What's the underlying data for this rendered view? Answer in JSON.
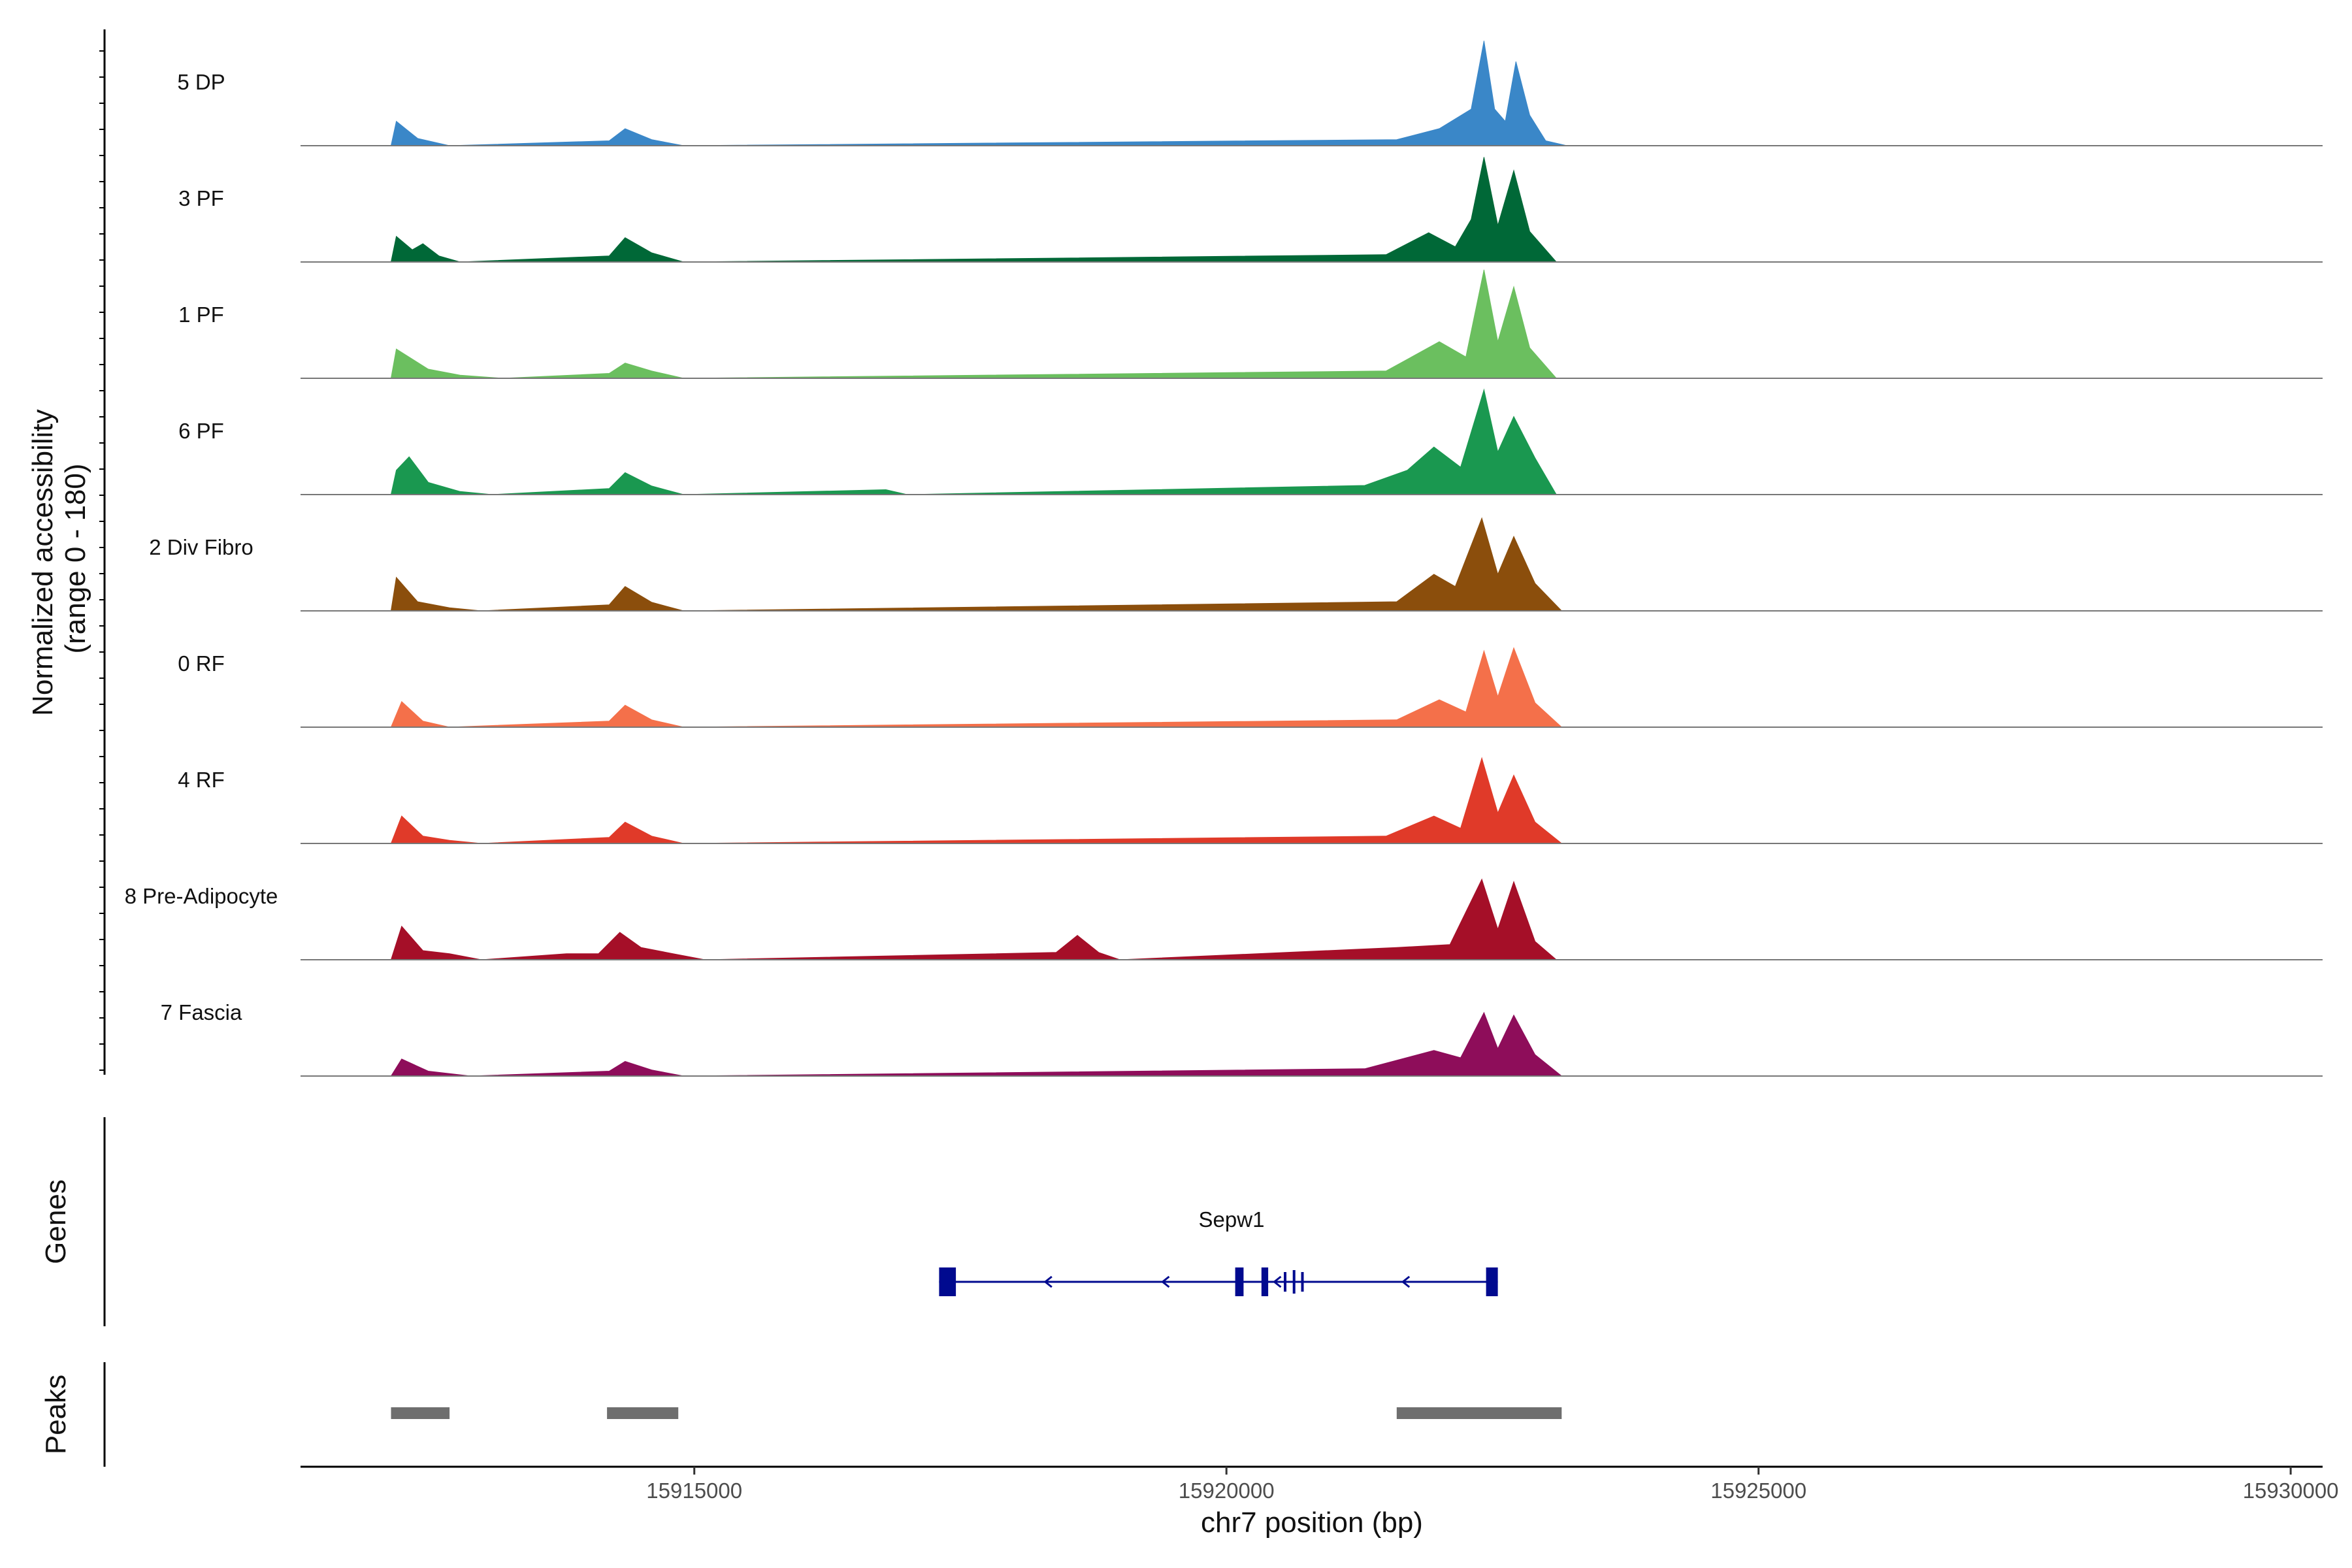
{
  "chart_data": {
    "type": "area",
    "title": "",
    "ylabel": "Normalized accessibility\n(range 0 - 180)",
    "xlabel": "chr7 position (bp)",
    "ylim": [
      0,
      180
    ],
    "xlim": [
      15911300,
      15930300
    ],
    "xticks": [
      15915000,
      15920000,
      15925000,
      15930000
    ],
    "xtick_labels": [
      "15915000",
      "15920000",
      "15925000",
      "15930000"
    ],
    "series": [
      {
        "name": "5 DP",
        "color": "#3A87C8",
        "values": [
          [
            15912150,
            0
          ],
          [
            15912200,
            40
          ],
          [
            15912400,
            12
          ],
          [
            15912700,
            0
          ],
          [
            15914200,
            8
          ],
          [
            15914350,
            28
          ],
          [
            15914600,
            10
          ],
          [
            15914900,
            0
          ],
          [
            15921600,
            10
          ],
          [
            15922000,
            28
          ],
          [
            15922300,
            60
          ],
          [
            15922420,
            172
          ],
          [
            15922520,
            60
          ],
          [
            15922620,
            40
          ],
          [
            15922720,
            138
          ],
          [
            15922850,
            50
          ],
          [
            15923000,
            8
          ],
          [
            15923200,
            0
          ]
        ]
      },
      {
        "name": "3 PF",
        "color": "#006837",
        "values": [
          [
            15912150,
            0
          ],
          [
            15912200,
            42
          ],
          [
            15912350,
            20
          ],
          [
            15912450,
            30
          ],
          [
            15912600,
            10
          ],
          [
            15912800,
            0
          ],
          [
            15914200,
            10
          ],
          [
            15914350,
            40
          ],
          [
            15914600,
            15
          ],
          [
            15914900,
            0
          ],
          [
            15921500,
            12
          ],
          [
            15921900,
            48
          ],
          [
            15922150,
            25
          ],
          [
            15922300,
            70
          ],
          [
            15922420,
            172
          ],
          [
            15922550,
            60
          ],
          [
            15922700,
            150
          ],
          [
            15922850,
            50
          ],
          [
            15923100,
            0
          ]
        ]
      },
      {
        "name": "1 PF",
        "color": "#6BBF5F",
        "values": [
          [
            15912150,
            0
          ],
          [
            15912200,
            48
          ],
          [
            15912500,
            15
          ],
          [
            15912800,
            5
          ],
          [
            15913200,
            0
          ],
          [
            15914200,
            8
          ],
          [
            15914350,
            25
          ],
          [
            15914600,
            12
          ],
          [
            15914900,
            0
          ],
          [
            15921500,
            12
          ],
          [
            15922000,
            60
          ],
          [
            15922250,
            35
          ],
          [
            15922420,
            178
          ],
          [
            15922550,
            60
          ],
          [
            15922700,
            150
          ],
          [
            15922850,
            50
          ],
          [
            15923100,
            0
          ]
        ]
      },
      {
        "name": "6 PF",
        "color": "#1A9850",
        "values": [
          [
            15912150,
            0
          ],
          [
            15912200,
            40
          ],
          [
            15912320,
            62
          ],
          [
            15912500,
            20
          ],
          [
            15912800,
            5
          ],
          [
            15913100,
            0
          ],
          [
            15914200,
            10
          ],
          [
            15914350,
            36
          ],
          [
            15914600,
            14
          ],
          [
            15914900,
            0
          ],
          [
            15916800,
            8
          ],
          [
            15917000,
            0
          ],
          [
            15921300,
            15
          ],
          [
            15921700,
            40
          ],
          [
            15921950,
            78
          ],
          [
            15922200,
            45
          ],
          [
            15922420,
            172
          ],
          [
            15922550,
            70
          ],
          [
            15922700,
            128
          ],
          [
            15922900,
            60
          ],
          [
            15923100,
            0
          ]
        ]
      },
      {
        "name": "2 Div Fibro",
        "color": "#8B4E0C",
        "values": [
          [
            15912150,
            0
          ],
          [
            15912200,
            55
          ],
          [
            15912400,
            15
          ],
          [
            15912700,
            5
          ],
          [
            15913000,
            0
          ],
          [
            15914200,
            10
          ],
          [
            15914350,
            40
          ],
          [
            15914600,
            14
          ],
          [
            15914900,
            0
          ],
          [
            15921600,
            15
          ],
          [
            15921950,
            60
          ],
          [
            15922150,
            40
          ],
          [
            15922400,
            152
          ],
          [
            15922550,
            60
          ],
          [
            15922700,
            122
          ],
          [
            15922900,
            45
          ],
          [
            15923150,
            0
          ]
        ]
      },
      {
        "name": "0 RF",
        "color": "#F4704A",
        "values": [
          [
            15912150,
            0
          ],
          [
            15912250,
            42
          ],
          [
            15912450,
            10
          ],
          [
            15912700,
            0
          ],
          [
            15914200,
            10
          ],
          [
            15914350,
            36
          ],
          [
            15914600,
            12
          ],
          [
            15914900,
            0
          ],
          [
            15921600,
            12
          ],
          [
            15922000,
            45
          ],
          [
            15922250,
            25
          ],
          [
            15922420,
            125
          ],
          [
            15922550,
            50
          ],
          [
            15922700,
            130
          ],
          [
            15922900,
            40
          ],
          [
            15923150,
            0
          ]
        ]
      },
      {
        "name": "4 RF",
        "color": "#E03A29",
        "values": [
          [
            15912150,
            0
          ],
          [
            15912250,
            45
          ],
          [
            15912450,
            12
          ],
          [
            15912700,
            5
          ],
          [
            15913000,
            0
          ],
          [
            15914200,
            10
          ],
          [
            15914350,
            35
          ],
          [
            15914600,
            12
          ],
          [
            15914900,
            0
          ],
          [
            15921500,
            12
          ],
          [
            15921950,
            45
          ],
          [
            15922200,
            25
          ],
          [
            15922400,
            140
          ],
          [
            15922550,
            50
          ],
          [
            15922700,
            112
          ],
          [
            15922900,
            35
          ],
          [
            15923150,
            0
          ]
        ]
      },
      {
        "name": "8 Pre-Adipocyte",
        "color": "#A50F28",
        "values": [
          [
            15912150,
            0
          ],
          [
            15912250,
            55
          ],
          [
            15912450,
            15
          ],
          [
            15912700,
            10
          ],
          [
            15913000,
            0
          ],
          [
            15913800,
            10
          ],
          [
            15914100,
            10
          ],
          [
            15914300,
            45
          ],
          [
            15914500,
            20
          ],
          [
            15914800,
            10
          ],
          [
            15915100,
            0
          ],
          [
            15918400,
            12
          ],
          [
            15918600,
            40
          ],
          [
            15918800,
            12
          ],
          [
            15919000,
            0
          ],
          [
            15921600,
            20
          ],
          [
            15922100,
            25
          ],
          [
            15922400,
            132
          ],
          [
            15922550,
            50
          ],
          [
            15922700,
            128
          ],
          [
            15922900,
            30
          ],
          [
            15923100,
            0
          ]
        ]
      },
      {
        "name": "7 Fascia",
        "color": "#8E0D5A",
        "values": [
          [
            15912150,
            0
          ],
          [
            15912250,
            28
          ],
          [
            15912500,
            8
          ],
          [
            15912900,
            0
          ],
          [
            15914200,
            8
          ],
          [
            15914350,
            24
          ],
          [
            15914600,
            10
          ],
          [
            15914900,
            0
          ],
          [
            15921300,
            12
          ],
          [
            15921950,
            42
          ],
          [
            15922200,
            30
          ],
          [
            15922420,
            104
          ],
          [
            15922550,
            45
          ],
          [
            15922700,
            100
          ],
          [
            15922900,
            35
          ],
          [
            15923150,
            0
          ]
        ]
      }
    ],
    "genes": [
      {
        "name": "Sepw1",
        "strand": "-",
        "start": 15917300,
        "end": 15922550,
        "color": "#000A8F"
      }
    ],
    "peaks": [
      {
        "start": 15912150,
        "end": 15912700,
        "color": "#6E6E6E"
      },
      {
        "start": 15914180,
        "end": 15914850,
        "color": "#6E6E6E"
      },
      {
        "start": 15921600,
        "end": 15923150,
        "color": "#6E6E6E"
      }
    ],
    "panel_labels": {
      "genes": "Genes",
      "peaks": "Peaks"
    }
  }
}
